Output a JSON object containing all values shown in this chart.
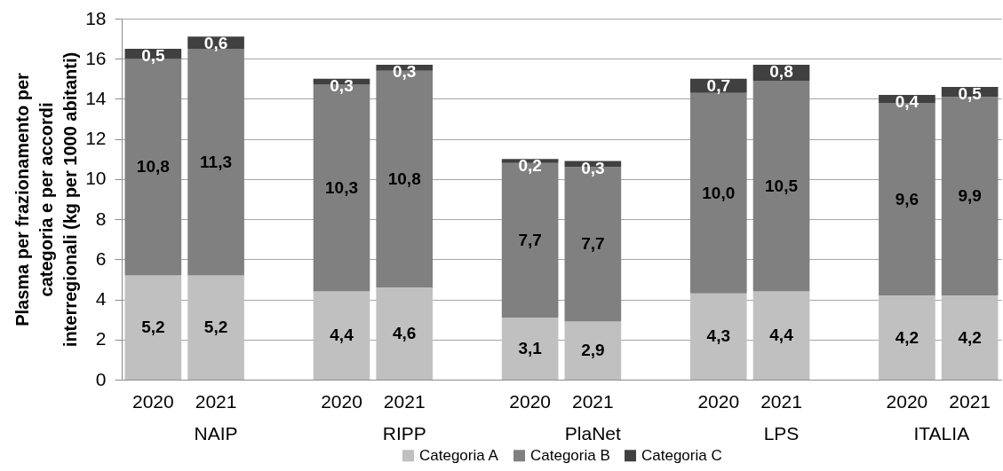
{
  "chart_data": {
    "type": "bar",
    "stacked": true,
    "ylabel": "Plasma per frazionamento per categoria e per accordi interregionali (kg per 1000 abitanti)",
    "categories": [
      "2020",
      "2021",
      "2020",
      "2021",
      "2020",
      "2021",
      "2020",
      "2021",
      "2020",
      "2021"
    ],
    "annotations": [
      "NAIP",
      "RIPP",
      "PlaNet",
      "LPS",
      "ITALIA"
    ],
    "series": [
      {
        "name": "Categoria A",
        "color": "#c0c0c0",
        "values": [
          5.2,
          5.2,
          4.4,
          4.6,
          3.1,
          2.9,
          4.3,
          4.4,
          4.2,
          4.2
        ],
        "value_labels": [
          "5,2",
          "5,2",
          "4,4",
          "4,6",
          "3,1",
          "2,9",
          "4,3",
          "4,4",
          "4,2",
          "4,2"
        ]
      },
      {
        "name": "Categoria B",
        "color": "#808080",
        "values": [
          10.8,
          11.3,
          10.3,
          10.8,
          7.7,
          7.7,
          10.0,
          10.5,
          9.6,
          9.9
        ],
        "value_labels": [
          "10,8",
          "11,3",
          "10,3",
          "10,8",
          "7,7",
          "7,7",
          "10,0",
          "10,5",
          "9,6",
          "9,9"
        ]
      },
      {
        "name": "Categoria C",
        "color": "#404040",
        "values": [
          0.5,
          0.6,
          0.3,
          0.3,
          0.2,
          0.3,
          0.7,
          0.8,
          0.4,
          0.5
        ],
        "value_labels": [
          "0,5",
          "0,6",
          "0,3",
          "0,3",
          "0,2",
          "0,3",
          "0,7",
          "0,8",
          "0,4",
          "0,5"
        ]
      }
    ],
    "ylim": [
      0,
      18
    ],
    "yticks": [
      0,
      2,
      4,
      6,
      8,
      10,
      12,
      14,
      16,
      18
    ],
    "grid": "y",
    "legend": "bottom"
  }
}
